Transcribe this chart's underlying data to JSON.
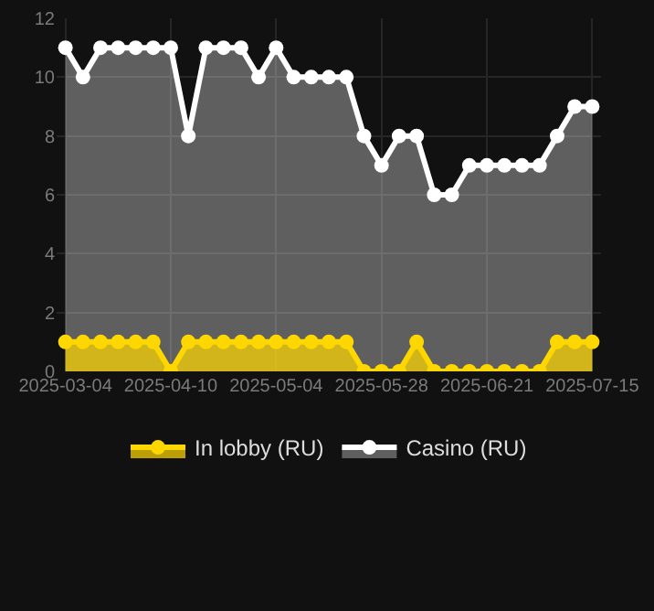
{
  "chart_data": {
    "type": "area",
    "categories": [
      "2025-03-04",
      null,
      null,
      null,
      null,
      null,
      "2025-04-10",
      null,
      null,
      null,
      null,
      null,
      "2025-05-04",
      null,
      null,
      null,
      null,
      null,
      "2025-05-28",
      null,
      null,
      null,
      null,
      null,
      "2025-06-21",
      null,
      null,
      null,
      null,
      null,
      "2025-07-15"
    ],
    "series": [
      {
        "name": "In lobby (RU)",
        "color": "#ffd700",
        "values": [
          1,
          1,
          1,
          1,
          1,
          1,
          0,
          1,
          1,
          1,
          1,
          1,
          1,
          1,
          1,
          1,
          1,
          0,
          0,
          0,
          1,
          0,
          0,
          0,
          0,
          0,
          0,
          0,
          1,
          1,
          1
        ]
      },
      {
        "name": "Casino (RU)",
        "color": "#ffffff",
        "values": [
          11,
          10,
          11,
          11,
          11,
          11,
          11,
          8,
          11,
          11,
          11,
          10,
          11,
          10,
          10,
          10,
          10,
          8,
          7,
          8,
          8,
          6,
          6,
          7,
          7,
          7,
          7,
          7,
          8,
          9,
          9
        ]
      }
    ],
    "ylim": [
      0,
      12
    ],
    "yticks": [
      0,
      2,
      4,
      6,
      8,
      10,
      12
    ],
    "grid": true,
    "legend": "bottom",
    "marker": "circle",
    "line_style": "solid"
  }
}
